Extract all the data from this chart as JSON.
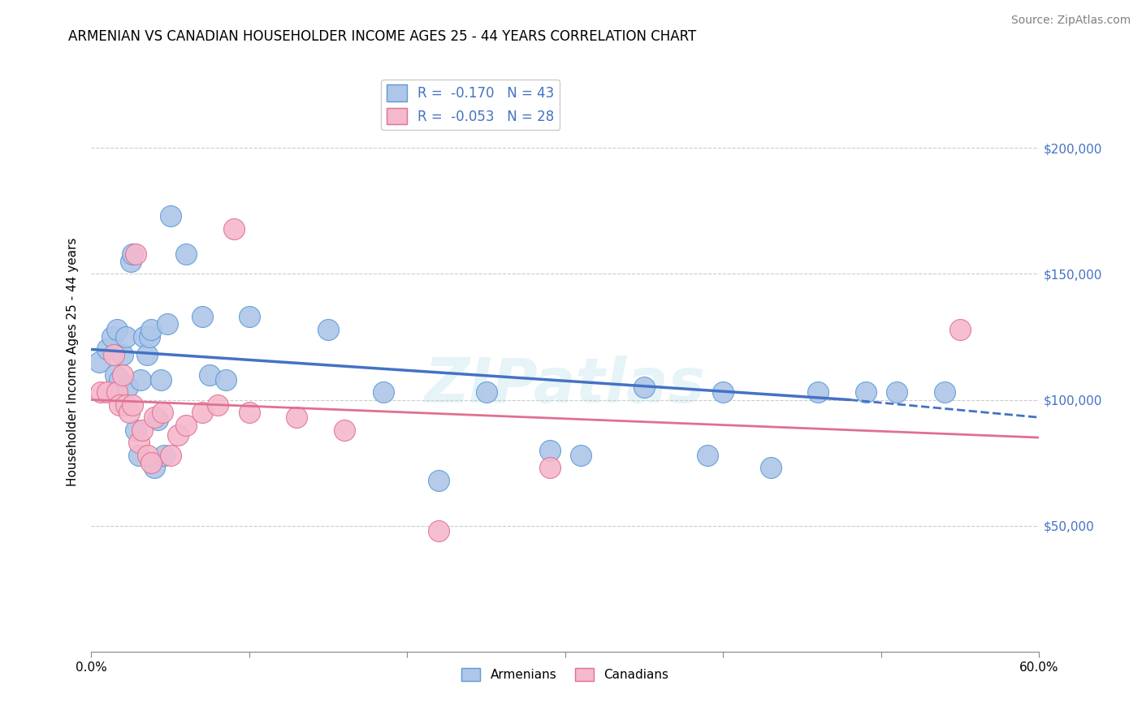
{
  "title": "ARMENIAN VS CANADIAN HOUSEHOLDER INCOME AGES 25 - 44 YEARS CORRELATION CHART",
  "source": "Source: ZipAtlas.com",
  "ylabel": "Householder Income Ages 25 - 44 years",
  "xlim": [
    0.0,
    0.6
  ],
  "ylim": [
    0,
    230000
  ],
  "xticks": [
    0.0,
    0.1,
    0.2,
    0.3,
    0.4,
    0.5,
    0.6
  ],
  "xticklabels": [
    "0.0%",
    "",
    "",
    "",
    "",
    "",
    "60.0%"
  ],
  "yticks": [
    0,
    50000,
    100000,
    150000,
    200000
  ],
  "right_yticklabels": [
    "",
    "$50,000",
    "$100,000",
    "$150,000",
    "$200,000"
  ],
  "armenian_R": -0.17,
  "armenian_N": 43,
  "canadian_R": -0.053,
  "canadian_N": 28,
  "armenian_color": "#aec6e8",
  "canadian_color": "#f5b8cc",
  "armenian_edge_color": "#5b9bd5",
  "canadian_edge_color": "#e07090",
  "armenian_trend_color": "#4472c4",
  "canadian_trend_color": "#e07090",
  "right_axis_color": "#4472c4",
  "armenians_x": [
    0.005,
    0.01,
    0.013,
    0.015,
    0.016,
    0.018,
    0.02,
    0.022,
    0.023,
    0.025,
    0.026,
    0.028,
    0.03,
    0.031,
    0.033,
    0.035,
    0.037,
    0.038,
    0.04,
    0.042,
    0.044,
    0.046,
    0.048,
    0.05,
    0.06,
    0.07,
    0.075,
    0.085,
    0.1,
    0.15,
    0.185,
    0.22,
    0.25,
    0.29,
    0.31,
    0.35,
    0.39,
    0.4,
    0.43,
    0.46,
    0.49,
    0.51,
    0.54
  ],
  "armenians_y": [
    115000,
    120000,
    125000,
    110000,
    128000,
    108000,
    118000,
    125000,
    105000,
    155000,
    158000,
    88000,
    78000,
    108000,
    125000,
    118000,
    125000,
    128000,
    73000,
    92000,
    108000,
    78000,
    130000,
    173000,
    158000,
    133000,
    110000,
    108000,
    133000,
    128000,
    103000,
    68000,
    103000,
    80000,
    78000,
    105000,
    78000,
    103000,
    73000,
    103000,
    103000,
    103000,
    103000
  ],
  "canadians_x": [
    0.006,
    0.01,
    0.014,
    0.016,
    0.018,
    0.02,
    0.022,
    0.024,
    0.026,
    0.028,
    0.03,
    0.032,
    0.036,
    0.038,
    0.04,
    0.045,
    0.05,
    0.055,
    0.06,
    0.07,
    0.08,
    0.09,
    0.1,
    0.13,
    0.16,
    0.22,
    0.29,
    0.55
  ],
  "canadians_y": [
    103000,
    103000,
    118000,
    103000,
    98000,
    110000,
    98000,
    95000,
    98000,
    158000,
    83000,
    88000,
    78000,
    75000,
    93000,
    95000,
    78000,
    86000,
    90000,
    95000,
    98000,
    168000,
    95000,
    93000,
    88000,
    48000,
    73000,
    128000
  ],
  "watermark": "ZIPatlas",
  "background_color": "#ffffff",
  "grid_color": "#cccccc"
}
